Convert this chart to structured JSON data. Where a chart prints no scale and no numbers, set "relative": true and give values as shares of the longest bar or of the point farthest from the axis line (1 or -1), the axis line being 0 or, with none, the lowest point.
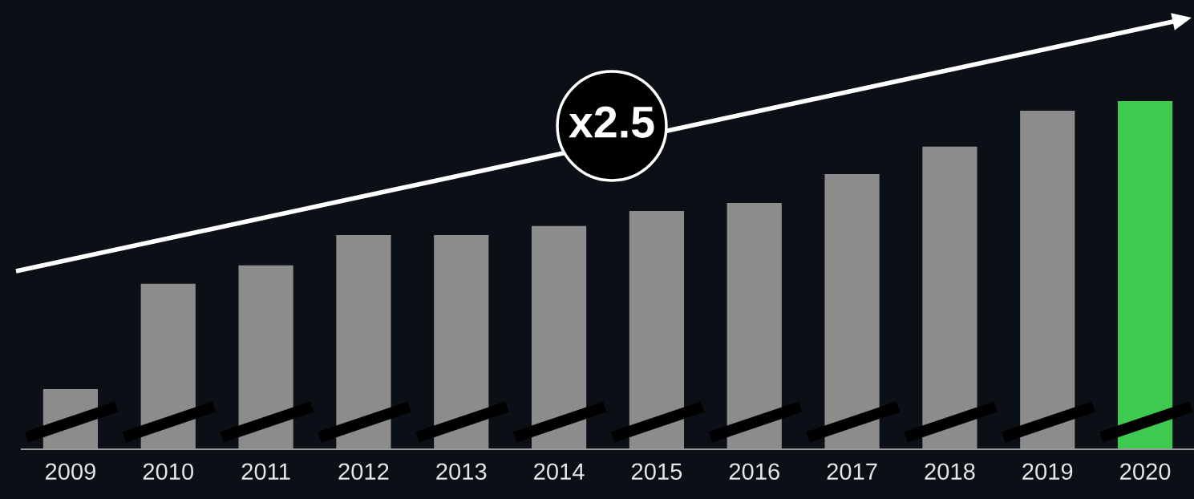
{
  "chart_data": {
    "type": "bar",
    "relative": true,
    "categories": [
      "2009",
      "2010",
      "2011",
      "2012",
      "2013",
      "2014",
      "2015",
      "2016",
      "2017",
      "2018",
      "2019",
      "2020"
    ],
    "values": [
      0.173,
      0.475,
      0.528,
      0.615,
      0.615,
      0.641,
      0.684,
      0.707,
      0.79,
      0.869,
      0.972,
      1
    ],
    "colors": [
      "#8c8c8c",
      "#8c8c8c",
      "#8c8c8c",
      "#8c8c8c",
      "#8c8c8c",
      "#8c8c8c",
      "#8c8c8c",
      "#8c8c8c",
      "#8c8c8c",
      "#8c8c8c",
      "#8c8c8c",
      "#3ec950"
    ],
    "annotations": [
      "x2.5"
    ]
  }
}
